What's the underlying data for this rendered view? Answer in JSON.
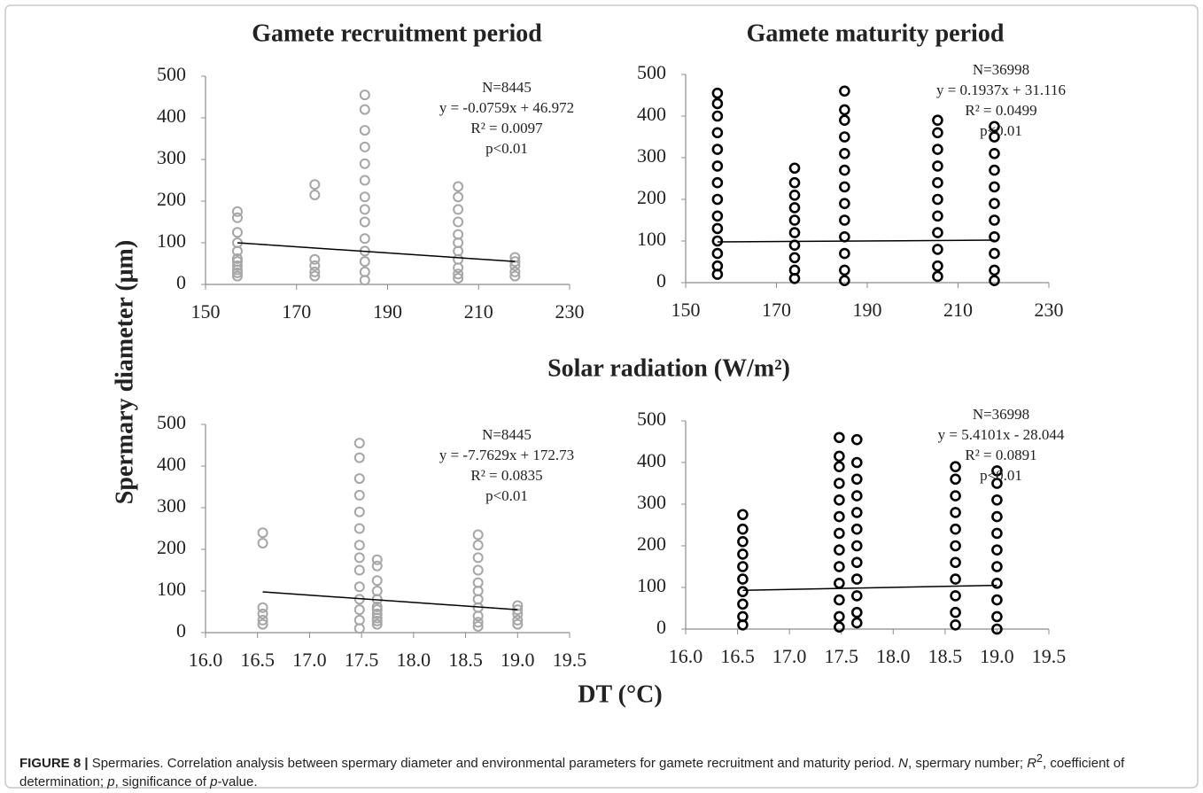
{
  "chart_data": [
    {
      "type": "scatter",
      "title": "Gamete recruitment period",
      "color": "#a6a6a6",
      "x": [
        157,
        157,
        157,
        157,
        157,
        157,
        157,
        157,
        157,
        157,
        157,
        174,
        174,
        174,
        174,
        174,
        174,
        185,
        185,
        185,
        185,
        185,
        185,
        185,
        185,
        185,
        185,
        185,
        185,
        185,
        185,
        205.5,
        205.5,
        205.5,
        205.5,
        205.5,
        205.5,
        205.5,
        205.5,
        205.5,
        205.5,
        205.5,
        218,
        218,
        218,
        218,
        218
      ],
      "values": [
        20,
        28,
        35,
        45,
        55,
        62,
        80,
        100,
        125,
        160,
        175,
        20,
        30,
        45,
        60,
        215,
        240,
        10,
        30,
        55,
        80,
        110,
        150,
        180,
        210,
        250,
        290,
        330,
        370,
        420,
        455,
        15,
        25,
        40,
        60,
        80,
        100,
        120,
        150,
        180,
        210,
        235,
        20,
        30,
        45,
        55,
        65
      ],
      "trendline": {
        "x": [
          157,
          218
        ],
        "values": [
          100,
          55
        ]
      },
      "annotations": [
        "N=8445",
        "y = -0.0759x + 46.972",
        "R² = 0.0097",
        "p<0.01"
      ],
      "xlim": [
        150,
        230
      ],
      "xticks": [
        150,
        170,
        190,
        210,
        230
      ],
      "ylim": [
        0,
        500
      ],
      "yticks": [
        0,
        100,
        200,
        300,
        400,
        500
      ]
    },
    {
      "type": "scatter",
      "title": "Gamete maturity period",
      "color": "#000000",
      "x": [
        157,
        157,
        157,
        157,
        157,
        157,
        157,
        157,
        157,
        157,
        157,
        157,
        157,
        157,
        174,
        174,
        174,
        174,
        174,
        174,
        174,
        174,
        174,
        174,
        185,
        185,
        185,
        185,
        185,
        185,
        185,
        185,
        185,
        185,
        185,
        185,
        185,
        205.5,
        205.5,
        205.5,
        205.5,
        205.5,
        205.5,
        205.5,
        205.5,
        205.5,
        205.5,
        205.5,
        218,
        218,
        218,
        218,
        218,
        218,
        218,
        218,
        218,
        218,
        218
      ],
      "values": [
        20,
        40,
        70,
        100,
        130,
        160,
        200,
        240,
        280,
        320,
        360,
        400,
        430,
        455,
        10,
        30,
        60,
        90,
        120,
        150,
        180,
        210,
        240,
        275,
        5,
        30,
        70,
        110,
        150,
        190,
        230,
        270,
        310,
        350,
        390,
        415,
        460,
        15,
        40,
        80,
        120,
        160,
        200,
        240,
        280,
        320,
        360,
        390,
        5,
        30,
        70,
        110,
        150,
        190,
        230,
        270,
        310,
        350,
        375
      ],
      "trendline": {
        "x": [
          157,
          218
        ],
        "values": [
          98,
          102
        ]
      },
      "annotations": [
        "N=36998",
        "y = 0.1937x + 31.116",
        "R² = 0.0499",
        "p<0.01"
      ],
      "xlim": [
        150,
        230
      ],
      "xticks": [
        150,
        170,
        190,
        210,
        230
      ],
      "ylim": [
        0,
        500
      ],
      "yticks": [
        0,
        100,
        200,
        300,
        400,
        500
      ]
    },
    {
      "type": "scatter",
      "color": "#a6a6a6",
      "x": [
        16.55,
        16.55,
        16.55,
        16.55,
        16.55,
        16.55,
        17.48,
        17.48,
        17.48,
        17.48,
        17.48,
        17.48,
        17.48,
        17.48,
        17.48,
        17.48,
        17.48,
        17.48,
        17.48,
        17.48,
        17.65,
        17.65,
        17.65,
        17.65,
        17.65,
        17.65,
        17.65,
        17.65,
        17.65,
        17.65,
        17.65,
        18.62,
        18.62,
        18.62,
        18.62,
        18.62,
        18.62,
        18.62,
        18.62,
        18.62,
        18.62,
        18.62,
        19.0,
        19.0,
        19.0,
        19.0,
        19.0
      ],
      "values": [
        20,
        30,
        45,
        60,
        215,
        240,
        10,
        30,
        55,
        80,
        110,
        150,
        180,
        210,
        250,
        290,
        330,
        370,
        420,
        455,
        20,
        28,
        35,
        45,
        55,
        62,
        80,
        100,
        125,
        160,
        175,
        15,
        25,
        40,
        60,
        80,
        100,
        120,
        150,
        180,
        210,
        235,
        20,
        30,
        45,
        55,
        65
      ],
      "trendline": {
        "x": [
          16.55,
          19.0
        ],
        "values": [
          98,
          55
        ]
      },
      "annotations": [
        "N=8445",
        "y = -7.7629x + 172.73",
        "R² = 0.0835",
        "p<0.01"
      ],
      "xlim": [
        16.0,
        19.5
      ],
      "xticks": [
        {
          "value": 16,
          "label": "16.0"
        },
        16.5,
        {
          "value": 17,
          "label": "17.0"
        },
        17.5,
        {
          "value": 18,
          "label": "18.0"
        },
        18.5,
        {
          "value": 19,
          "label": "19.0"
        },
        19.5
      ],
      "ylim": [
        0,
        500
      ],
      "yticks": [
        0,
        100,
        200,
        300,
        400,
        500
      ]
    },
    {
      "type": "scatter",
      "color": "#000000",
      "x": [
        16.55,
        16.55,
        16.55,
        16.55,
        16.55,
        16.55,
        16.55,
        16.55,
        16.55,
        16.55,
        17.48,
        17.48,
        17.48,
        17.48,
        17.48,
        17.48,
        17.48,
        17.48,
        17.48,
        17.48,
        17.48,
        17.48,
        17.48,
        17.65,
        17.65,
        17.65,
        17.65,
        17.65,
        17.65,
        17.65,
        17.65,
        17.65,
        17.65,
        17.65,
        17.65,
        18.6,
        18.6,
        18.6,
        18.6,
        18.6,
        18.6,
        18.6,
        18.6,
        18.6,
        18.6,
        18.6,
        19.0,
        19.0,
        19.0,
        19.0,
        19.0,
        19.0,
        19.0,
        19.0,
        19.0,
        19.0,
        19.0
      ],
      "values": [
        10,
        30,
        60,
        90,
        120,
        150,
        180,
        210,
        240,
        275,
        5,
        30,
        70,
        110,
        150,
        190,
        230,
        270,
        310,
        350,
        390,
        415,
        460,
        15,
        40,
        80,
        120,
        160,
        200,
        240,
        280,
        320,
        360,
        400,
        455,
        10,
        40,
        80,
        120,
        160,
        200,
        240,
        280,
        320,
        360,
        390,
        0,
        30,
        70,
        110,
        150,
        190,
        230,
        270,
        310,
        350,
        380
      ],
      "trendline": {
        "x": [
          16.55,
          19.0
        ],
        "values": [
          93,
          105
        ]
      },
      "annotations": [
        "N=36998",
        "y = 5.4101x - 28.044",
        "R² = 0.0891",
        "p<0.01"
      ],
      "xlim": [
        16.0,
        19.5
      ],
      "xticks": [
        {
          "value": 16,
          "label": "16.0"
        },
        16.5,
        {
          "value": 17,
          "label": "17.0"
        },
        17.5,
        {
          "value": 18,
          "label": "18.0"
        },
        18.5,
        {
          "value": 19,
          "label": "19.0"
        },
        19.5
      ],
      "ylim": [
        0,
        500
      ],
      "yticks": [
        0,
        100,
        200,
        300,
        400,
        500
      ]
    }
  ],
  "y_label": "Spermary diameter (μm)",
  "x_label_top": "Solar radiation (W/m²)",
  "x_label_bottom": "DT (°C)",
  "caption": [
    "FIGURE 8 |",
    " Spermaries. Correlation analysis between spermary diameter and environmental parameters for gamete recruitment and maturity period. ",
    "N",
    ", spermary number; ",
    "R",
    "2",
    ", coefficient of determination; ",
    "p",
    ", significance of ",
    "p",
    "-value."
  ]
}
